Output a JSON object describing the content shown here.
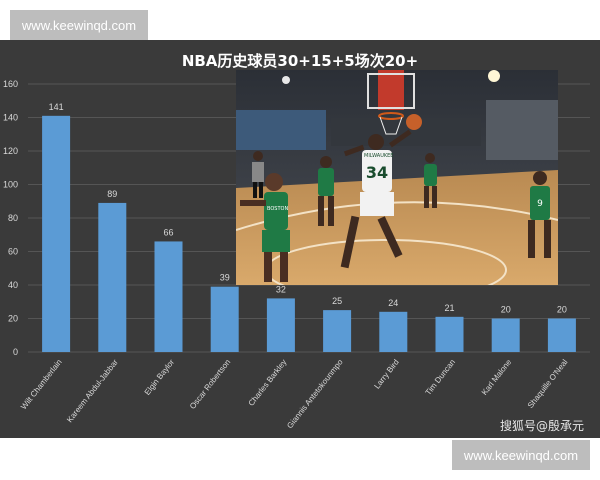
{
  "watermark_top": "www.keewinqd.com",
  "watermark_bottom": "www.keewinqd.com",
  "credit": "搜狐号@殷承元",
  "colors": {
    "panel": "#3a3a3a",
    "bar": "#5b9bd5",
    "grid": "#555555",
    "text": "#d9d9d9"
  },
  "photo": {
    "jersey_number": "34",
    "jersey_team": "MILWAUKEE",
    "left_jersey_text": "BOSTON",
    "right_jersey_number": "9"
  },
  "chart_data": {
    "type": "bar",
    "title": "NBA历史球员30+15+5场次20+",
    "categories": [
      "Wilt Chamberlain",
      "Kareem Abdul-Jabbar",
      "Elgin Baylor",
      "Oscar Robertson",
      "Charles Barkley",
      "Giannis Antetokounmpo",
      "Larry Bird",
      "Tim Duncan",
      "Karl Malone",
      "Shaquille O'Neal"
    ],
    "values": [
      141,
      89,
      66,
      39,
      32,
      25,
      24,
      21,
      20,
      20
    ],
    "ylim": [
      0,
      160
    ],
    "yticks": [
      0,
      20,
      40,
      60,
      80,
      100,
      120,
      140,
      160
    ],
    "xlabel": "",
    "ylabel": "",
    "grid": true
  }
}
